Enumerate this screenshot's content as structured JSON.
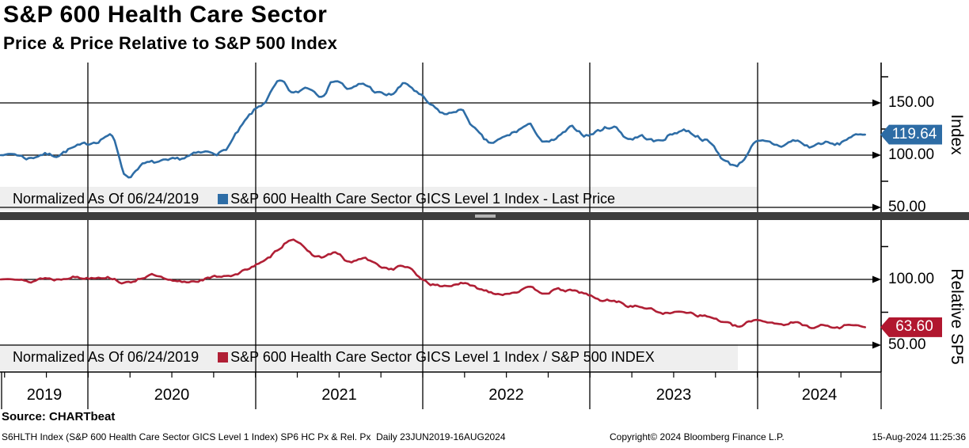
{
  "title": "S&P 600 Health Care Sector",
  "subtitle": "Price & Price Relative to S&P 500 Index",
  "source_line": "Source: CHARTbeat",
  "footer": {
    "left": "S6HLTH Index (S&P 600 Health Care Sector GICS Level 1 Index) SP6 HC Px & Rel. Px  Daily 23JUN2019-16AUG2024",
    "center": "Copyright© 2024 Bloomberg Finance L.P.",
    "right": "15-Aug-2024 11:25:36"
  },
  "colors": {
    "price_line": "#2e6da6",
    "relative_line": "#b01f35",
    "price_badge": "#2d6ca5",
    "relative_badge": "#b1172f",
    "legend_bg": "#efefef",
    "separator_bar": "#3e3e3e",
    "separator_handle": "#b5b5b5",
    "grid": "#000000"
  },
  "x_axis": {
    "start_label": "23JUN2019",
    "end_label": "16AUG2024",
    "frequency": "Daily",
    "year_labels": [
      "2019",
      "2020",
      "2021",
      "2022",
      "2023",
      "2024"
    ]
  },
  "chart_data": [
    {
      "type": "line",
      "panel": "price",
      "name": "S&P 600 Health Care Sector GICS Level 1 Index - Last Price",
      "legend": {
        "normalized_label": "Normalized As Of 06/24/2019",
        "series_label": "S&P 600 Health Care Sector GICS Level 1 Index - Last Price"
      },
      "ylabel": "Index",
      "ylim": [
        40,
        190
      ],
      "yticks": [
        {
          "label": "150.00",
          "value": 150
        },
        {
          "label": "100.00",
          "value": 100
        },
        {
          "label": "50.00",
          "value": 50
        }
      ],
      "minor_tick_values": [
        175,
        125,
        75
      ],
      "last_value": 119.64,
      "last_value_label": "119.64",
      "x_monthly_from": "2019-06",
      "x_monthly_to": "2024-08",
      "values": [
        100,
        101,
        97,
        101,
        100,
        106,
        110,
        114,
        117,
        80,
        90,
        93,
        94,
        97,
        101,
        103,
        104,
        122,
        140,
        152,
        170,
        159,
        165,
        158,
        172,
        163,
        168,
        160,
        158,
        168,
        158,
        146,
        139,
        143,
        125,
        112,
        116,
        123,
        128,
        112,
        117,
        126,
        119,
        124,
        127,
        116,
        118,
        113,
        119,
        124,
        118,
        110,
        94,
        92,
        110,
        112,
        109,
        114,
        108,
        112,
        110,
        118,
        119.64
      ]
    },
    {
      "type": "line",
      "panel": "relative",
      "name": "S&P 600 Health Care Sector GICS Level 1 Index / S&P 500 INDEX",
      "legend": {
        "normalized_label": "Normalized As Of 06/24/2019",
        "series_label": "S&P 600 Health Care Sector GICS Level 1 Index / S&P 500 INDEX"
      },
      "ylabel": "Relative SP5",
      "ylim": [
        40,
        140
      ],
      "yticks": [
        {
          "label": "100.00",
          "value": 100
        },
        {
          "label": "50.00",
          "value": 50
        }
      ],
      "minor_tick_values": [
        125,
        75
      ],
      "last_value": 63.6,
      "last_value_label": "63.60",
      "x_monthly_from": "2019-06",
      "x_monthly_to": "2024-08",
      "values": [
        100,
        101,
        98,
        101,
        100,
        102,
        101,
        102,
        101,
        97,
        101,
        103,
        99,
        98,
        99,
        101,
        103,
        104,
        110,
        114,
        124,
        131,
        121,
        117,
        120,
        113,
        116,
        111,
        108,
        110,
        102,
        96,
        95,
        97,
        94,
        91,
        89,
        91,
        93,
        90,
        92,
        91,
        89,
        84,
        84,
        80,
        79,
        76,
        74,
        76,
        73,
        71,
        67,
        64,
        69,
        68,
        66,
        67,
        64,
        65,
        63,
        66,
        63.6
      ]
    }
  ]
}
